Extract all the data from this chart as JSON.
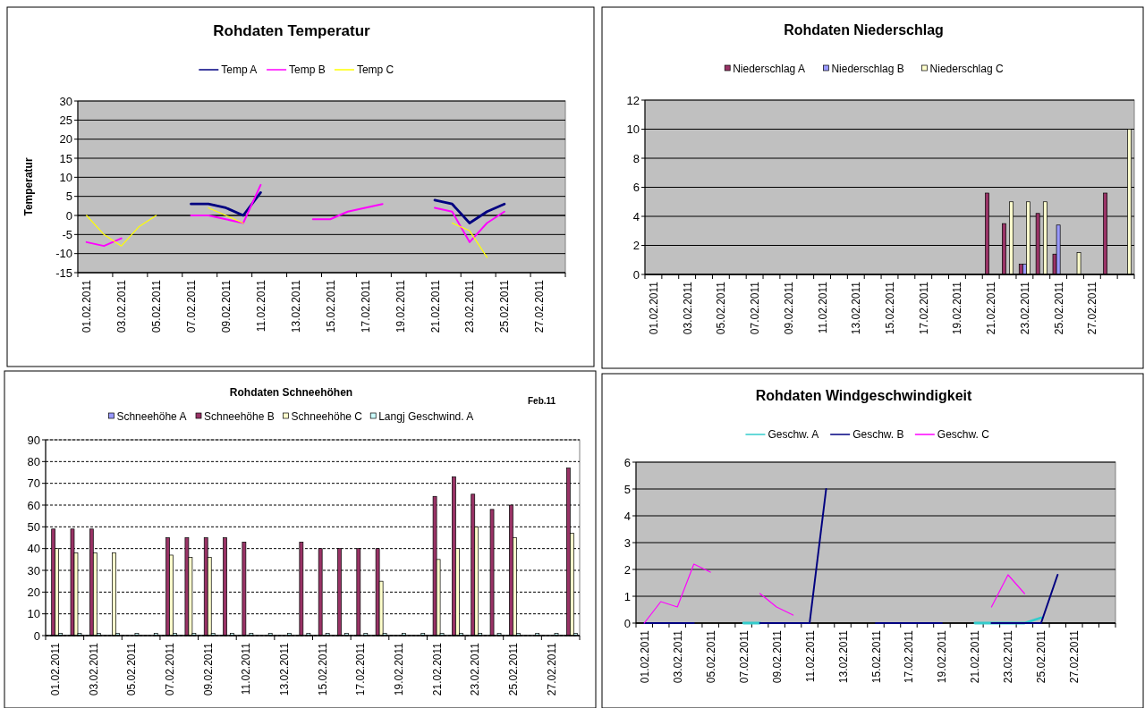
{
  "chart_data": [
    {
      "type": "line",
      "title": "Rohdaten Temperatur",
      "ylabel": "Temperatur",
      "categories": [
        "01.02.2011",
        null,
        "03.02.2011",
        null,
        "05.02.2011",
        null,
        "07.02.2011",
        null,
        "09.02.2011",
        null,
        "11.02.2011",
        null,
        "13.02.2011",
        null,
        "15.02.2011",
        null,
        "17.02.2011",
        null,
        "19.02.2011",
        null,
        "21.02.2011",
        null,
        "23.02.2011",
        null,
        "25.02.2011",
        null,
        "27.02.2011",
        null
      ],
      "series": [
        {
          "name": "Temp A",
          "color": "#000080",
          "values": [
            null,
            null,
            null,
            null,
            null,
            null,
            3,
            3,
            2,
            0,
            6,
            null,
            null,
            null,
            null,
            null,
            null,
            null,
            null,
            null,
            4,
            3,
            -2,
            1,
            3,
            null,
            null,
            null
          ]
        },
        {
          "name": "Temp B",
          "color": "#ff00ff",
          "values": [
            -7,
            -8,
            -6,
            null,
            null,
            null,
            0,
            0,
            -1,
            -2,
            8,
            null,
            null,
            -1,
            -1,
            1,
            2,
            3,
            null,
            null,
            2,
            1,
            -7,
            -2,
            1,
            null,
            null,
            null
          ]
        },
        {
          "name": "Temp C",
          "color": "#ffff00",
          "values": [
            0,
            -5,
            -8,
            -3,
            0,
            null,
            null,
            2,
            0,
            -2,
            null,
            null,
            null,
            null,
            null,
            null,
            null,
            null,
            null,
            null,
            null,
            -2,
            -4,
            -11,
            null,
            null,
            null,
            null
          ]
        }
      ],
      "ylim": [
        -15,
        30
      ],
      "yticks": [
        -15,
        -10,
        -5,
        0,
        5,
        10,
        15,
        20,
        25,
        30
      ],
      "grid": "y",
      "legend": "top"
    },
    {
      "type": "bar",
      "title": "Rohdaten Niederschlag",
      "categories": [
        "01.02.2011",
        null,
        "03.02.2011",
        null,
        "05.02.2011",
        null,
        "07.02.2011",
        null,
        "09.02.2011",
        null,
        "11.02.2011",
        null,
        "13.02.2011",
        null,
        "15.02.2011",
        null,
        "17.02.2011",
        null,
        "19.02.2011",
        null,
        "21.02.2011",
        null,
        "23.02.2011",
        null,
        "25.02.2011",
        null,
        "27.02.2011",
        null,
        null
      ],
      "series": [
        {
          "name": "Niederschlag A",
          "color": "#993366",
          "values": [
            null,
            null,
            null,
            null,
            null,
            null,
            null,
            null,
            null,
            null,
            null,
            null,
            null,
            null,
            null,
            null,
            null,
            null,
            null,
            null,
            5.6,
            3.5,
            0.7,
            4.2,
            1.4,
            null,
            null,
            5.6,
            null
          ]
        },
        {
          "name": "Niederschlag B",
          "color": "#9999ff",
          "values": [
            null,
            null,
            null,
            null,
            null,
            null,
            null,
            null,
            null,
            null,
            null,
            null,
            null,
            null,
            null,
            null,
            null,
            null,
            null,
            null,
            null,
            null,
            0.7,
            null,
            3.4,
            null,
            null,
            null,
            null
          ]
        },
        {
          "name": "Niederschlag C",
          "color": "#ffffcc",
          "values": [
            null,
            null,
            null,
            null,
            null,
            null,
            null,
            null,
            null,
            null,
            null,
            null,
            null,
            null,
            null,
            null,
            null,
            null,
            null,
            null,
            null,
            5,
            5,
            5,
            null,
            1.5,
            null,
            null,
            10
          ]
        }
      ],
      "ylim": [
        0,
        12
      ],
      "yticks": [
        0,
        2,
        4,
        6,
        8,
        10,
        12
      ],
      "grid": "y",
      "legend": "top"
    },
    {
      "type": "bar",
      "title": "Rohdaten Schneehöhen",
      "annotations": [
        "Feb.11"
      ],
      "categories": [
        "01.02.2011",
        null,
        "03.02.2011",
        null,
        "05.02.2011",
        null,
        "07.02.2011",
        null,
        "09.02.2011",
        null,
        "11.02.2011",
        null,
        "13.02.2011",
        null,
        "15.02.2011",
        null,
        "17.02.2011",
        null,
        "19.02.2011",
        null,
        "21.02.2011",
        null,
        "23.02.2011",
        null,
        "25.02.2011",
        null,
        "27.02.2011",
        null
      ],
      "series": [
        {
          "name": "Schneehöhe A",
          "color": "#9999ff",
          "values": [
            0,
            0,
            0,
            0,
            0,
            0,
            0,
            0,
            0,
            0,
            0,
            0,
            0,
            0,
            0,
            0,
            0,
            0,
            0,
            0,
            0,
            0,
            0,
            0,
            0,
            0,
            0,
            0
          ]
        },
        {
          "name": "Schneehöhe B",
          "color": "#993366",
          "values": [
            49,
            49,
            49,
            null,
            null,
            null,
            45,
            45,
            45,
            45,
            43,
            null,
            null,
            43,
            40,
            40,
            40,
            40,
            null,
            null,
            64,
            73,
            65,
            58,
            60,
            null,
            null,
            77
          ]
        },
        {
          "name": "Schneehöhe C",
          "color": "#ffffcc",
          "values": [
            40,
            38,
            38,
            38,
            null,
            null,
            37,
            36,
            36,
            null,
            null,
            null,
            null,
            null,
            null,
            null,
            null,
            25,
            null,
            null,
            35,
            40,
            50,
            null,
            45,
            null,
            null,
            47
          ]
        },
        {
          "name": "Langj Geschwind. A",
          "color": "#ccffff",
          "values": [
            1,
            1,
            1,
            1,
            1,
            1,
            1,
            1,
            1,
            1,
            1,
            1,
            1,
            1,
            1,
            1,
            1,
            1,
            1,
            1,
            1,
            1,
            1,
            1,
            1,
            1,
            1,
            1
          ]
        }
      ],
      "ylim": [
        0,
        90
      ],
      "yticks": [
        0,
        10,
        20,
        30,
        40,
        50,
        60,
        70,
        80,
        90
      ],
      "grid": "y",
      "legend": "top"
    },
    {
      "type": "line",
      "title": "Rohdaten Windgeschwindigkeit",
      "categories": [
        "01.02.2011",
        null,
        "03.02.2011",
        null,
        "05.02.2011",
        null,
        "07.02.2011",
        null,
        "09.02.2011",
        null,
        "11.02.2011",
        null,
        "13.02.2011",
        null,
        "15.02.2011",
        null,
        "17.02.2011",
        null,
        "19.02.2011",
        null,
        "21.02.2011",
        null,
        "23.02.2011",
        null,
        "25.02.2011",
        null,
        "27.02.2011",
        null,
        null
      ],
      "series": [
        {
          "name": "Geschw. A",
          "color": "#33cccc",
          "values": [
            null,
            null,
            null,
            null,
            null,
            null,
            0,
            0,
            null,
            null,
            null,
            null,
            null,
            null,
            null,
            null,
            null,
            null,
            null,
            null,
            0,
            0,
            0,
            0,
            0.2,
            null,
            null,
            null,
            null
          ]
        },
        {
          "name": "Geschw. B",
          "color": "#000080",
          "values": [
            0,
            0,
            0,
            0,
            null,
            null,
            null,
            0,
            0,
            0,
            0,
            5,
            null,
            null,
            0,
            0,
            0,
            0,
            0,
            null,
            null,
            0,
            0,
            0,
            0,
            1.8,
            null,
            null,
            null
          ]
        },
        {
          "name": "Geschw. C",
          "color": "#ff00ff",
          "values": [
            0,
            0.8,
            0.6,
            2.2,
            1.9,
            null,
            null,
            1.1,
            0.6,
            0.3,
            null,
            null,
            null,
            null,
            null,
            null,
            null,
            null,
            null,
            null,
            null,
            0.6,
            1.8,
            1.1,
            null,
            null,
            null,
            null,
            null
          ]
        }
      ],
      "ylim": [
        0,
        6
      ],
      "yticks": [
        0,
        1,
        2,
        3,
        4,
        5,
        6
      ],
      "grid": "y",
      "legend": "top"
    }
  ]
}
